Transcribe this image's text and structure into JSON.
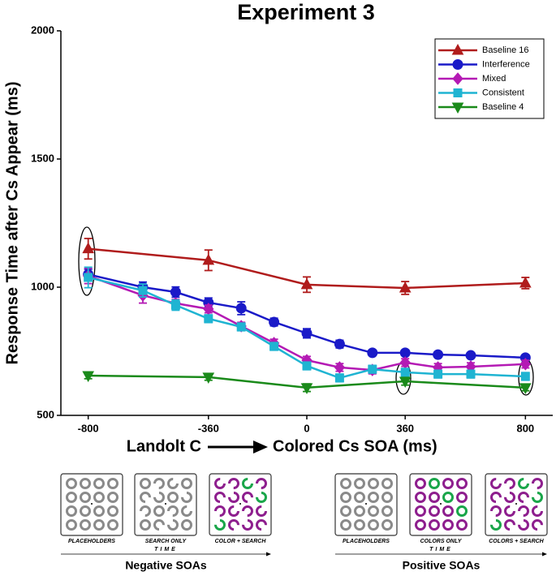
{
  "chart_data": {
    "type": "line",
    "title": "Experiment 3",
    "ylabel": "Response Time after Cs Appear (ms)",
    "xlabel_left": "Landolt C",
    "xlabel_right": "Colored Cs SOA (ms)",
    "xlim": [
      -900,
      900
    ],
    "xticks": [
      -800,
      -360,
      0,
      360,
      800
    ],
    "ylim": [
      500,
      2000
    ],
    "yticks": [
      500,
      1000,
      1500,
      2000
    ],
    "legend": "upper right",
    "series": [
      {
        "name": "Baseline 16",
        "color": "#b01c1c",
        "marker": "triangle-up",
        "x": [
          -800,
          -360,
          0,
          360,
          800
        ],
        "values": [
          1150,
          1105,
          1010,
          997,
          1016
        ],
        "errors": [
          40,
          40,
          30,
          25,
          22
        ]
      },
      {
        "name": "Interference",
        "color": "#1a1ac8",
        "marker": "circle",
        "x": [
          -800,
          -600,
          -480,
          -360,
          -240,
          -120,
          0,
          120,
          240,
          360,
          480,
          600,
          800
        ],
        "values": [
          1050,
          1000,
          981,
          940,
          918,
          864,
          820,
          778,
          744,
          744,
          737,
          734,
          725
        ],
        "errors": [
          20,
          20,
          20,
          18,
          25,
          15,
          18,
          15,
          10,
          10,
          10,
          10,
          10
        ]
      },
      {
        "name": "Mixed",
        "color": "#b41ab4",
        "marker": "diamond",
        "x": [
          -800,
          -600,
          -480,
          -360,
          -240,
          -120,
          0,
          120,
          240,
          360,
          480,
          600,
          800
        ],
        "values": [
          1044,
          968,
          937,
          915,
          848,
          782,
          715,
          687,
          677,
          706,
          687,
          690,
          700
        ],
        "errors": [
          30,
          30,
          15,
          15,
          15,
          15,
          15,
          15,
          15,
          15,
          15,
          15,
          15
        ]
      },
      {
        "name": "Consistent",
        "color": "#1fb4d2",
        "marker": "square",
        "x": [
          -800,
          -600,
          -480,
          -360,
          -240,
          -120,
          0,
          120,
          240,
          360,
          480,
          600,
          800
        ],
        "values": [
          1038,
          987,
          930,
          877,
          845,
          769,
          693,
          646,
          680,
          668,
          661,
          661,
          652
        ],
        "errors": [
          40,
          25,
          20,
          15,
          15,
          15,
          15,
          15,
          15,
          15,
          15,
          15,
          15
        ]
      },
      {
        "name": "Baseline 4",
        "color": "#1a8a1a",
        "marker": "triangle-down",
        "x": [
          -800,
          -360,
          0,
          360,
          800
        ],
        "values": [
          655,
          649,
          608,
          633,
          608
        ],
        "errors": [
          12,
          12,
          15,
          15,
          12
        ]
      }
    ]
  },
  "panels": [
    {
      "frames": [
        "PLACEHOLDERS",
        "SEARCH ONLY",
        "COLOR + SEARCH"
      ],
      "time": "TIME",
      "label": "Negative SOAs"
    },
    {
      "frames": [
        "PLACEHOLDERS",
        "COLORS ONLY",
        "COLORS + SEARCH"
      ],
      "time": "TIME",
      "label": "Positive SOAs"
    }
  ]
}
